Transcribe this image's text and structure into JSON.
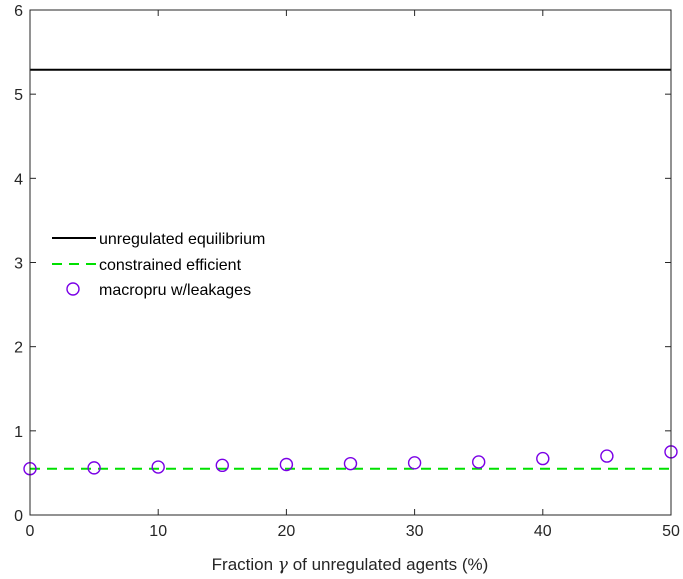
{
  "chart_data": {
    "type": "line",
    "title": "",
    "xlabel_before": "Fraction ",
    "xlabel_symbol": "γ",
    "xlabel_after": " of unregulated agents (%)",
    "ylabel": "",
    "xlim": [
      0,
      50
    ],
    "ylim": [
      0,
      6
    ],
    "x_ticks": [
      0,
      10,
      20,
      30,
      40,
      50
    ],
    "y_ticks": [
      0,
      1,
      2,
      3,
      4,
      5,
      6
    ],
    "grid": false,
    "legend_position": "middle-left",
    "series": [
      {
        "name": "unregulated equilibrium",
        "style": "solid-line",
        "color": "#000000",
        "x": [
          0,
          50
        ],
        "y": [
          5.29,
          5.29
        ]
      },
      {
        "name": "constrained efficient",
        "style": "dashed-line",
        "color": "#00e000",
        "x": [
          0,
          50
        ],
        "y": [
          0.55,
          0.55
        ]
      },
      {
        "name": "macropru w/leakages",
        "style": "circle-markers",
        "color": "#7a00e6",
        "x": [
          0,
          5,
          10,
          15,
          20,
          25,
          30,
          35,
          40,
          45,
          50
        ],
        "y": [
          0.55,
          0.56,
          0.57,
          0.59,
          0.6,
          0.61,
          0.62,
          0.63,
          0.67,
          0.7,
          0.75
        ]
      }
    ]
  }
}
